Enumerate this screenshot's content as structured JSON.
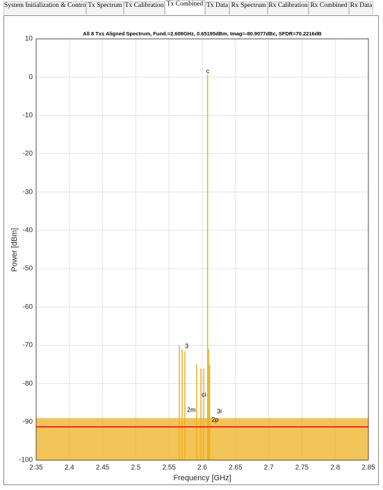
{
  "tabs": [
    "System Initialization & Control",
    "Tx Spectrum",
    "Tx Calibration",
    "Tx Combined",
    "Tx Data",
    "Rx Spectrum",
    "Rx Calibration",
    "Rx Combined",
    "Rx Data"
  ],
  "selected_tab": 3,
  "chart_data": {
    "type": "stem",
    "title": "All 8 Txs Aligned Spectrum, Fund.=2.608GHz, 0.65195dBm, Imag=-80.9077dBc, SFDR=70.2216dB",
    "xlabel": "Frequency [GHz]",
    "ylabel": "Power [dBm]",
    "xlim": [
      2.35,
      2.85
    ],
    "ylim": [
      -100,
      10
    ],
    "xticks": [
      2.35,
      2.4,
      2.45,
      2.5,
      2.55,
      2.6,
      2.65,
      2.7,
      2.75,
      2.8,
      2.85
    ],
    "yticks": [
      10,
      0,
      -10,
      -20,
      -30,
      -40,
      -50,
      -60,
      -70,
      -80,
      -90,
      -100
    ],
    "grid": true,
    "color": "#edb120",
    "x": [
      2.5655,
      2.5697,
      2.5738,
      2.5916,
      2.5979,
      2.6021,
      2.608,
      2.6095,
      2.611
    ],
    "values": [
      -70,
      -71,
      -71.5,
      -75,
      -76,
      -76,
      0.65,
      -71,
      -75
    ],
    "noise_band": [
      -100,
      -89
    ],
    "noise_floor": -91.3,
    "noise_floor_color": "#ff2a1a",
    "annotations": [
      {
        "text": "c",
        "x": 2.606,
        "y": 1.5
      },
      {
        "text": "3",
        "x": 2.574,
        "y": -70.3
      },
      {
        "text": "ci",
        "x": 2.599,
        "y": -83
      },
      {
        "text": "2m",
        "x": 2.577,
        "y": -87
      },
      {
        "text": "2p",
        "x": 2.614,
        "y": -89.5
      },
      {
        "text": "3i",
        "x": 2.622,
        "y": -87.3
      }
    ]
  }
}
